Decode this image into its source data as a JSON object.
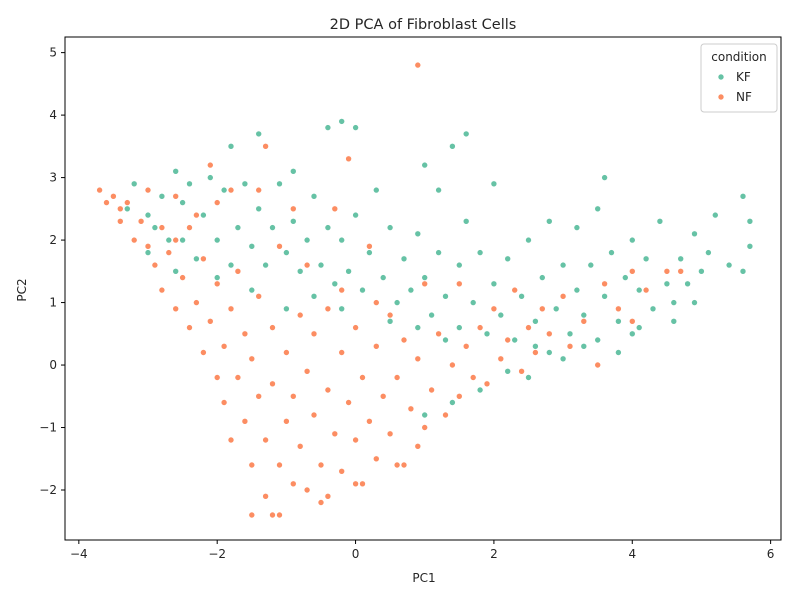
{
  "chart_data": {
    "type": "scatter",
    "title": "2D PCA of Fibroblast Cells",
    "xlabel": "PC1",
    "ylabel": "PC2",
    "xlim": [
      -4.2,
      6.15
    ],
    "ylim": [
      -2.8,
      5.25
    ],
    "x_ticks": [
      -4,
      -2,
      0,
      2,
      4,
      6
    ],
    "y_ticks": [
      -2,
      -1,
      0,
      1,
      2,
      3,
      4,
      5
    ],
    "grid": false,
    "legend": {
      "title": "condition",
      "placement": "top-right"
    },
    "series": [
      {
        "name": "KF",
        "color": "#66c2a5",
        "points": [
          [
            -3.3,
            2.5
          ],
          [
            -3.2,
            2.9
          ],
          [
            -3.0,
            2.4
          ],
          [
            -2.9,
            2.2
          ],
          [
            -2.8,
            2.7
          ],
          [
            -2.7,
            2.0
          ],
          [
            -2.6,
            3.1
          ],
          [
            -2.5,
            2.6
          ],
          [
            -2.5,
            2.0
          ],
          [
            -2.4,
            2.9
          ],
          [
            -2.3,
            1.7
          ],
          [
            -2.2,
            2.4
          ],
          [
            -2.1,
            3.0
          ],
          [
            -2.0,
            2.0
          ],
          [
            -1.9,
            2.8
          ],
          [
            -1.8,
            1.6
          ],
          [
            -1.8,
            3.5
          ],
          [
            -1.7,
            2.2
          ],
          [
            -1.6,
            2.9
          ],
          [
            -1.5,
            1.9
          ],
          [
            -1.4,
            3.7
          ],
          [
            -1.4,
            2.5
          ],
          [
            -1.3,
            1.6
          ],
          [
            -1.2,
            2.2
          ],
          [
            -1.1,
            2.9
          ],
          [
            -1.0,
            1.8
          ],
          [
            -0.9,
            3.1
          ],
          [
            -0.9,
            2.3
          ],
          [
            -0.8,
            1.5
          ],
          [
            -0.7,
            2.0
          ],
          [
            -0.6,
            2.7
          ],
          [
            -0.5,
            1.6
          ],
          [
            -0.4,
            3.8
          ],
          [
            -0.4,
            2.2
          ],
          [
            -0.3,
            1.3
          ],
          [
            -0.2,
            3.9
          ],
          [
            -0.2,
            2.0
          ],
          [
            -0.1,
            1.5
          ],
          [
            0.0,
            3.8
          ],
          [
            0.0,
            2.4
          ],
          [
            0.1,
            1.2
          ],
          [
            0.2,
            1.8
          ],
          [
            0.3,
            1.0
          ],
          [
            0.3,
            2.8
          ],
          [
            0.4,
            1.4
          ],
          [
            0.5,
            2.2
          ],
          [
            0.6,
            1.0
          ],
          [
            0.7,
            1.7
          ],
          [
            0.8,
            1.2
          ],
          [
            0.9,
            2.1
          ],
          [
            1.0,
            3.2
          ],
          [
            1.0,
            1.4
          ],
          [
            1.1,
            0.8
          ],
          [
            1.2,
            1.8
          ],
          [
            1.2,
            2.8
          ],
          [
            1.3,
            1.1
          ],
          [
            1.4,
            3.5
          ],
          [
            1.5,
            1.6
          ],
          [
            1.5,
            0.6
          ],
          [
            1.6,
            3.7
          ],
          [
            1.6,
            2.3
          ],
          [
            1.7,
            1.0
          ],
          [
            1.8,
            1.8
          ],
          [
            1.9,
            0.5
          ],
          [
            2.0,
            1.3
          ],
          [
            2.0,
            2.9
          ],
          [
            2.1,
            0.8
          ],
          [
            2.2,
            1.7
          ],
          [
            2.3,
            0.4
          ],
          [
            2.4,
            1.1
          ],
          [
            2.5,
            2.0
          ],
          [
            2.6,
            0.7
          ],
          [
            2.7,
            1.4
          ],
          [
            2.8,
            0.2
          ],
          [
            2.8,
            2.3
          ],
          [
            2.9,
            0.9
          ],
          [
            3.0,
            1.6
          ],
          [
            3.1,
            0.5
          ],
          [
            3.2,
            1.2
          ],
          [
            3.2,
            2.2
          ],
          [
            3.3,
            0.8
          ],
          [
            3.4,
            1.6
          ],
          [
            3.5,
            0.4
          ],
          [
            3.5,
            2.5
          ],
          [
            3.6,
            1.1
          ],
          [
            3.6,
            3.0
          ],
          [
            3.7,
            1.8
          ],
          [
            3.8,
            0.7
          ],
          [
            3.9,
            1.4
          ],
          [
            4.0,
            2.0
          ],
          [
            4.0,
            0.5
          ],
          [
            4.1,
            1.2
          ],
          [
            4.2,
            1.7
          ],
          [
            4.3,
            0.9
          ],
          [
            4.4,
            2.3
          ],
          [
            4.5,
            1.3
          ],
          [
            4.6,
            1.0
          ],
          [
            4.7,
            1.7
          ],
          [
            4.8,
            1.3
          ],
          [
            4.9,
            2.1
          ],
          [
            5.0,
            1.5
          ],
          [
            5.1,
            1.8
          ],
          [
            5.2,
            2.4
          ],
          [
            5.4,
            1.6
          ],
          [
            5.6,
            2.7
          ],
          [
            5.6,
            1.5
          ],
          [
            5.7,
            2.3
          ],
          [
            5.7,
            1.9
          ],
          [
            2.5,
            -0.2
          ],
          [
            3.0,
            0.1
          ],
          [
            1.8,
            -0.4
          ],
          [
            2.2,
            -0.1
          ],
          [
            1.4,
            -0.6
          ],
          [
            1.0,
            -0.8
          ],
          [
            2.6,
            0.3
          ],
          [
            3.3,
            0.3
          ],
          [
            3.8,
            0.2
          ],
          [
            4.1,
            0.6
          ],
          [
            4.6,
            0.7
          ],
          [
            4.9,
            1.0
          ],
          [
            -1.0,
            0.9
          ],
          [
            -0.6,
            1.1
          ],
          [
            -0.2,
            0.9
          ],
          [
            0.5,
            0.7
          ],
          [
            0.9,
            0.6
          ],
          [
            1.3,
            0.4
          ],
          [
            -1.5,
            1.2
          ],
          [
            -2.0,
            1.4
          ],
          [
            -2.6,
            1.5
          ],
          [
            -3.0,
            1.8
          ]
        ]
      },
      {
        "name": "NF",
        "color": "#fc8d62",
        "points": [
          [
            -3.7,
            2.8
          ],
          [
            -3.6,
            2.6
          ],
          [
            -3.5,
            2.7
          ],
          [
            -3.4,
            2.5
          ],
          [
            -3.4,
            2.3
          ],
          [
            -3.3,
            2.6
          ],
          [
            -3.2,
            2.0
          ],
          [
            -3.1,
            2.3
          ],
          [
            -3.0,
            1.9
          ],
          [
            -3.0,
            2.8
          ],
          [
            -2.9,
            1.6
          ],
          [
            -2.8,
            2.2
          ],
          [
            -2.8,
            1.2
          ],
          [
            -2.7,
            1.8
          ],
          [
            -2.6,
            0.9
          ],
          [
            -2.6,
            2.7
          ],
          [
            -2.5,
            1.4
          ],
          [
            -2.4,
            0.6
          ],
          [
            -2.4,
            2.2
          ],
          [
            -2.3,
            1.0
          ],
          [
            -2.2,
            0.2
          ],
          [
            -2.2,
            1.7
          ],
          [
            -2.1,
            3.2
          ],
          [
            -2.1,
            0.7
          ],
          [
            -2.0,
            -0.2
          ],
          [
            -2.0,
            1.3
          ],
          [
            -1.9,
            0.3
          ],
          [
            -1.9,
            -0.6
          ],
          [
            -1.8,
            2.8
          ],
          [
            -1.8,
            0.9
          ],
          [
            -1.8,
            -1.2
          ],
          [
            -1.7,
            -0.2
          ],
          [
            -1.7,
            1.5
          ],
          [
            -1.6,
            0.5
          ],
          [
            -1.6,
            -0.9
          ],
          [
            -1.5,
            -1.6
          ],
          [
            -1.5,
            0.1
          ],
          [
            -1.4,
            1.1
          ],
          [
            -1.4,
            -0.5
          ],
          [
            -1.3,
            -2.1
          ],
          [
            -1.3,
            3.5
          ],
          [
            -1.3,
            -1.2
          ],
          [
            -1.2,
            0.6
          ],
          [
            -1.2,
            -0.3
          ],
          [
            -1.1,
            -2.4
          ],
          [
            -1.1,
            -1.6
          ],
          [
            -1.0,
            0.2
          ],
          [
            -1.0,
            -0.9
          ],
          [
            -0.9,
            2.5
          ],
          [
            -0.9,
            -1.9
          ],
          [
            -0.9,
            -0.5
          ],
          [
            -0.8,
            0.8
          ],
          [
            -0.8,
            -1.3
          ],
          [
            -0.7,
            -0.1
          ],
          [
            -0.7,
            -2.0
          ],
          [
            -0.6,
            -0.8
          ],
          [
            -0.6,
            0.5
          ],
          [
            -0.5,
            -1.6
          ],
          [
            -0.5,
            -2.2
          ],
          [
            -0.4,
            -0.4
          ],
          [
            -0.4,
            0.9
          ],
          [
            -0.3,
            -1.1
          ],
          [
            -0.3,
            2.5
          ],
          [
            -0.2,
            0.2
          ],
          [
            -0.2,
            -1.7
          ],
          [
            -0.1,
            3.3
          ],
          [
            -0.1,
            -0.6
          ],
          [
            0.0,
            0.6
          ],
          [
            0.0,
            -1.2
          ],
          [
            0.0,
            -1.9
          ],
          [
            0.1,
            -0.2
          ],
          [
            0.2,
            -0.9
          ],
          [
            0.2,
            1.9
          ],
          [
            0.3,
            0.3
          ],
          [
            0.3,
            -1.5
          ],
          [
            0.4,
            -0.5
          ],
          [
            0.5,
            0.8
          ],
          [
            0.5,
            -1.1
          ],
          [
            0.6,
            -0.2
          ],
          [
            0.7,
            -1.6
          ],
          [
            0.7,
            0.4
          ],
          [
            0.8,
            -0.7
          ],
          [
            0.9,
            4.8
          ],
          [
            0.9,
            0.1
          ],
          [
            1.0,
            -1.0
          ],
          [
            1.0,
            1.3
          ],
          [
            1.1,
            -0.4
          ],
          [
            1.2,
            0.5
          ],
          [
            1.3,
            -0.8
          ],
          [
            1.4,
            0.0
          ],
          [
            1.5,
            1.3
          ],
          [
            1.5,
            -0.5
          ],
          [
            1.6,
            0.3
          ],
          [
            1.7,
            -0.2
          ],
          [
            1.8,
            0.6
          ],
          [
            1.9,
            -0.3
          ],
          [
            2.0,
            0.9
          ],
          [
            2.1,
            0.1
          ],
          [
            2.2,
            0.4
          ],
          [
            2.3,
            1.2
          ],
          [
            2.4,
            -0.1
          ],
          [
            2.5,
            0.6
          ],
          [
            2.6,
            0.2
          ],
          [
            2.7,
            0.9
          ],
          [
            2.8,
            0.5
          ],
          [
            3.0,
            1.1
          ],
          [
            3.1,
            0.3
          ],
          [
            3.3,
            0.7
          ],
          [
            3.5,
            0.0
          ],
          [
            3.6,
            1.3
          ],
          [
            3.8,
            0.9
          ],
          [
            4.0,
            0.7
          ],
          [
            4.0,
            1.5
          ],
          [
            4.2,
            1.2
          ],
          [
            4.5,
            1.5
          ],
          [
            4.7,
            1.5
          ],
          [
            -1.4,
            2.8
          ],
          [
            -2.0,
            2.6
          ],
          [
            -2.3,
            2.4
          ],
          [
            -2.6,
            2.0
          ],
          [
            -1.1,
            1.9
          ],
          [
            -0.7,
            1.6
          ],
          [
            -0.2,
            1.2
          ],
          [
            0.3,
            1.0
          ],
          [
            -1.5,
            -2.4
          ],
          [
            -1.2,
            -2.4
          ],
          [
            -0.4,
            -2.1
          ],
          [
            0.1,
            -1.9
          ],
          [
            0.6,
            -1.6
          ],
          [
            0.9,
            -1.3
          ]
        ]
      }
    ]
  }
}
